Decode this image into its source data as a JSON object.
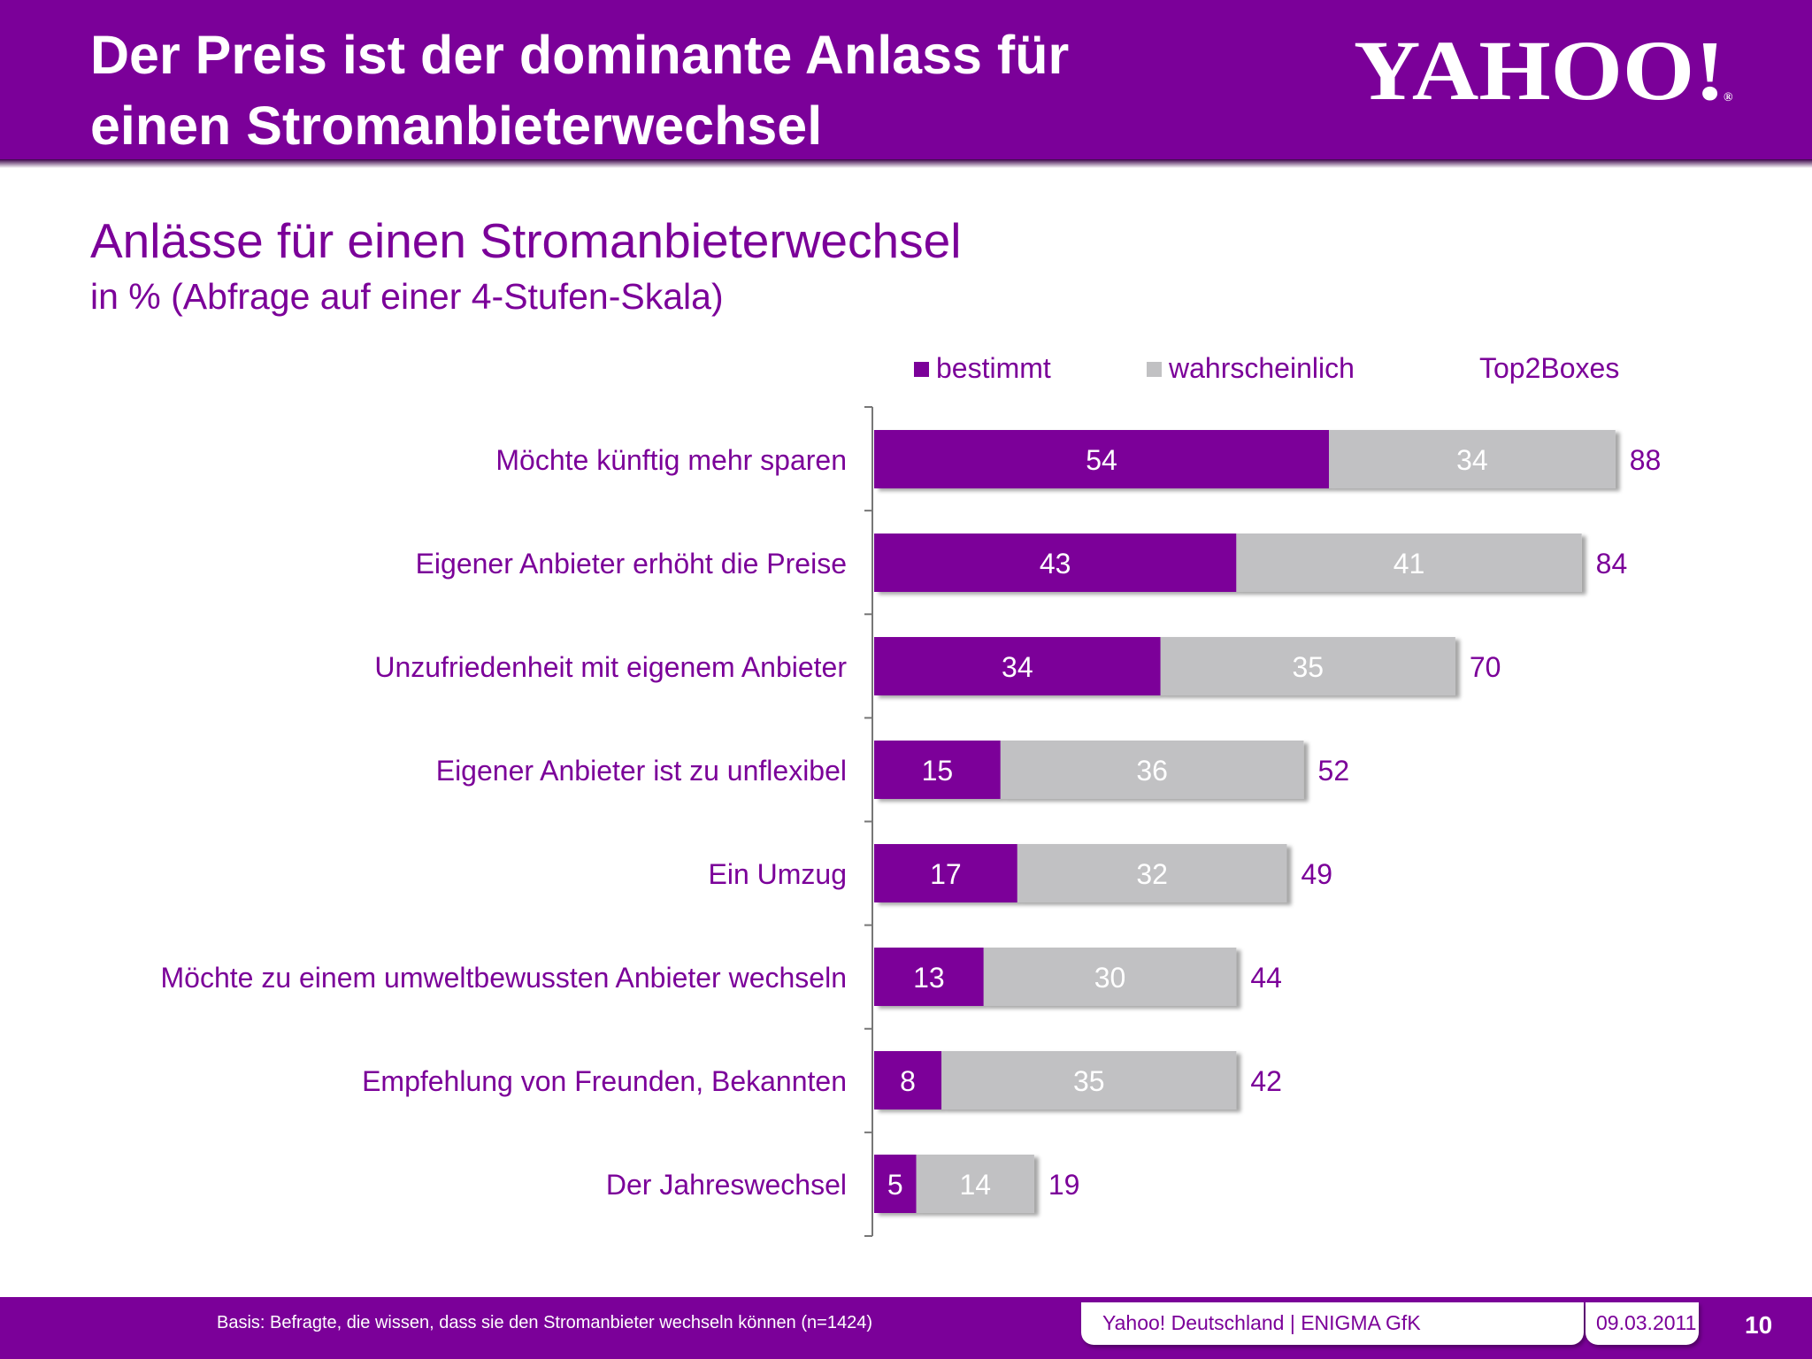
{
  "header": {
    "title_line1": "Der Preis ist der dominante Anlass für",
    "title_line2": "einen Stromanbieterwechsel",
    "logo_text": "YAHOO!",
    "logo_reg": "®"
  },
  "chart_data": {
    "type": "bar",
    "orientation": "horizontal",
    "stacked": true,
    "title": "Anlässe für einen Stromanbieterwechsel",
    "subtitle": "in % (Abfrage auf einer 4-Stufen-Skala)",
    "xlabel": "",
    "ylabel": "",
    "xlim": [
      0,
      100
    ],
    "grid": false,
    "legend_position": "top",
    "categories": [
      "Möchte künftig mehr sparen",
      "Eigener Anbieter erhöht die Preise",
      "Unzufriedenheit mit eigenem Anbieter",
      "Eigener Anbieter ist zu unflexibel",
      "Ein Umzug",
      "Möchte zu einem umweltbewussten Anbieter wechseln",
      "Empfehlung von Freunden, Bekannten",
      "Der Jahreswechsel"
    ],
    "series": [
      {
        "name": "bestimmt",
        "color": "#7b0099",
        "values": [
          54,
          43,
          34,
          15,
          17,
          13,
          8,
          5
        ]
      },
      {
        "name": "wahrscheinlich",
        "color": "#c1c1c3",
        "values": [
          34,
          41,
          35,
          36,
          32,
          30,
          35,
          14
        ]
      }
    ],
    "totals_label": "Top2Boxes",
    "totals": [
      88,
      84,
      70,
      52,
      49,
      44,
      42,
      19
    ]
  },
  "footer": {
    "basis": "Basis: Befragte, die wissen, dass sie den Stromanbieter wechseln können (n=1424)",
    "source": "Yahoo! Deutschland | ENIGMA GfK",
    "date": "09.03.2011",
    "page": "10"
  },
  "colors": {
    "brand_purple": "#7b0099",
    "bar_gray": "#c1c1c3",
    "white": "#ffffff"
  }
}
